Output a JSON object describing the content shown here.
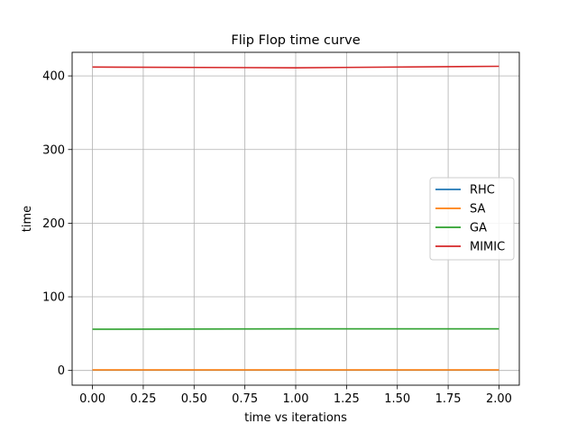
{
  "chart_data": {
    "type": "line",
    "title": "Flip Flop time curve",
    "xlabel": "time vs iterations",
    "ylabel": "time",
    "xlim": [
      -0.1,
      2.1
    ],
    "ylim": [
      -20,
      432
    ],
    "xticks": [
      0.0,
      0.25,
      0.5,
      0.75,
      1.0,
      1.25,
      1.5,
      1.75,
      2.0
    ],
    "xtick_labels": [
      "0.00",
      "0.25",
      "0.50",
      "0.75",
      "1.00",
      "1.25",
      "1.50",
      "1.75",
      "2.00"
    ],
    "yticks": [
      0,
      100,
      200,
      300,
      400
    ],
    "ytick_labels": [
      "0",
      "100",
      "200",
      "300",
      "400"
    ],
    "grid": true,
    "legend_position": "center-right",
    "x": [
      0,
      1,
      2
    ],
    "series": [
      {
        "name": "RHC",
        "color": "#1f77b4",
        "values": [
          0.5,
          0.5,
          0.5
        ]
      },
      {
        "name": "SA",
        "color": "#ff7f0e",
        "values": [
          0.8,
          0.8,
          0.8
        ]
      },
      {
        "name": "GA",
        "color": "#2ca02c",
        "values": [
          56,
          56.5,
          56.5
        ]
      },
      {
        "name": "MIMIC",
        "color": "#d62728",
        "values": [
          412,
          411,
          413
        ]
      }
    ]
  }
}
